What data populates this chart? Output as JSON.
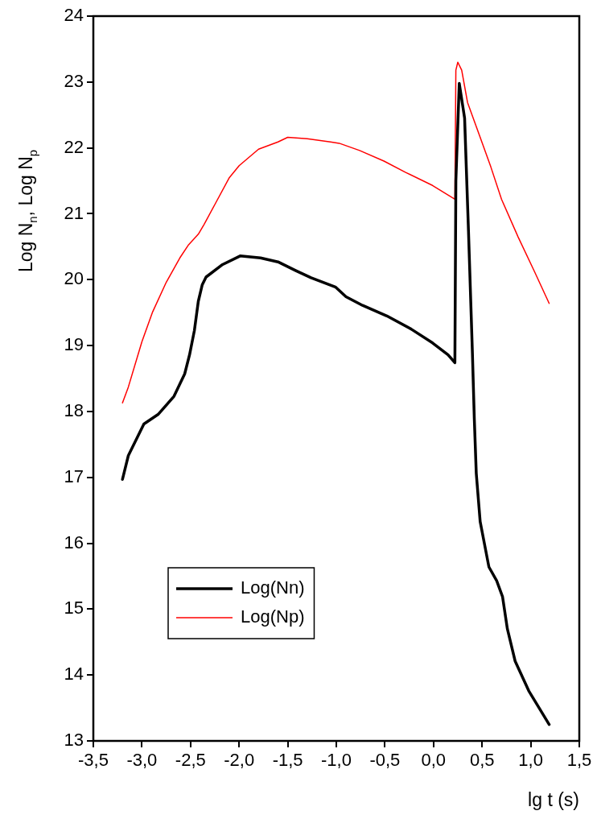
{
  "chart_data": {
    "type": "line",
    "xlabel": "lg t (s)",
    "ylabel": "Log N$_{n}$, Log N$_{p}$",
    "xlim": [
      -3.5,
      1.5
    ],
    "ylim": [
      13,
      24
    ],
    "xticks": [
      {
        "value": -3.5,
        "label": "-3,5"
      },
      {
        "value": -3.0,
        "label": "-3,0"
      },
      {
        "value": -2.5,
        "label": "-2,5"
      },
      {
        "value": -2.0,
        "label": "-2,0"
      },
      {
        "value": -1.5,
        "label": "-1,5"
      },
      {
        "value": -1.0,
        "label": "-1,0"
      },
      {
        "value": -0.5,
        "label": "-0,5"
      },
      {
        "value": 0,
        "label": "0,0"
      },
      {
        "value": 0.5,
        "label": "0,5"
      },
      {
        "value": 1.0,
        "label": "1,0"
      },
      {
        "value": 1.5,
        "label": "1,5"
      }
    ],
    "yticks": [
      13,
      14,
      15,
      16,
      17,
      18,
      19,
      20,
      21,
      22,
      23,
      24
    ],
    "grid": false,
    "legend": "bottom left",
    "marker": "none",
    "line_style": "solid",
    "series": [
      {
        "name": "Log(Nn)",
        "color": "#000000",
        "x": [
          -3.2,
          -3.14,
          -2.98,
          -2.83,
          -2.67,
          -2.56,
          -2.51,
          -2.46,
          -2.42,
          -2.38,
          -2.34,
          -2.17,
          -1.99,
          -1.78,
          -1.6,
          -1.42,
          -1.26,
          -1.01,
          -0.9,
          -0.73,
          -0.48,
          -0.23,
          -0.01,
          0.15,
          0.22,
          0.23,
          0.265,
          0.32,
          0.36,
          0.4,
          0.42,
          0.44,
          0.48,
          0.57,
          0.65,
          0.71,
          0.76,
          0.84,
          0.98,
          1.19
        ],
        "values": [
          16.97,
          17.33,
          17.81,
          17.96,
          18.23,
          18.57,
          18.86,
          19.23,
          19.67,
          19.92,
          20.04,
          20.23,
          20.36,
          20.33,
          20.27,
          20.14,
          20.03,
          19.89,
          19.74,
          19.61,
          19.45,
          19.25,
          19.04,
          18.86,
          18.74,
          21.5,
          22.98,
          22.45,
          20.73,
          18.9,
          17.88,
          17.06,
          16.33,
          15.64,
          15.43,
          15.19,
          14.7,
          14.21,
          13.76,
          13.25
        ]
      },
      {
        "name": "Log(Np)",
        "color": "#ff0000",
        "x": [
          -3.2,
          -3.14,
          -3.0,
          -2.89,
          -2.75,
          -2.61,
          -2.52,
          -2.42,
          -2.36,
          -2.25,
          -2.1,
          -2.0,
          -1.8,
          -1.6,
          -1.5,
          -1.3,
          -1.06,
          -0.97,
          -0.76,
          -0.51,
          -0.29,
          -0.01,
          0.22,
          0.23,
          0.25,
          0.29,
          0.35,
          0.48,
          0.59,
          0.7,
          0.87,
          1.04,
          1.19
        ],
        "values": [
          18.13,
          18.37,
          19.06,
          19.51,
          19.96,
          20.33,
          20.53,
          20.69,
          20.84,
          21.14,
          21.55,
          21.73,
          21.98,
          22.09,
          22.16,
          22.14,
          22.09,
          22.07,
          21.96,
          21.8,
          21.63,
          21.43,
          21.22,
          23.18,
          23.3,
          23.18,
          22.69,
          22.16,
          21.71,
          21.22,
          20.65,
          20.12,
          19.64
        ]
      }
    ]
  }
}
